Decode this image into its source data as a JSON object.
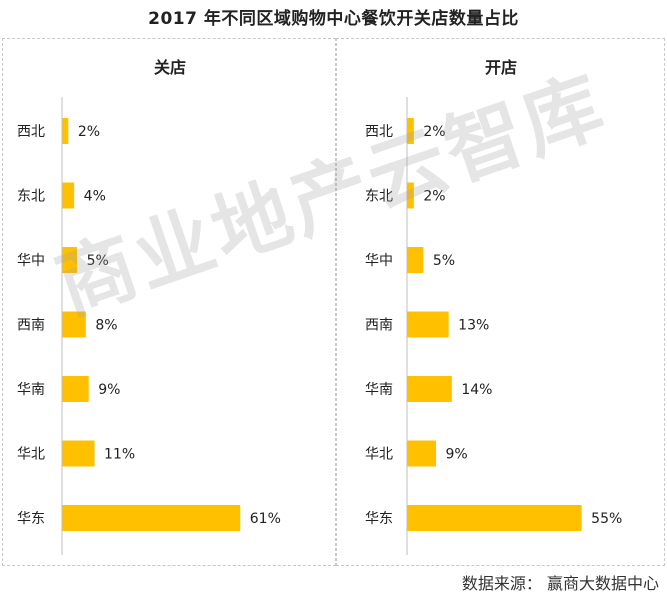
{
  "title": "2017 年不同区域购物中心餐饮开关店数量占比",
  "watermark": "商业地产云智库",
  "source": "数据来源： 赢商大数据中心",
  "bar_color": "#FFC000",
  "chart_data": [
    {
      "type": "bar",
      "orientation": "horizontal",
      "title": "关店",
      "categories": [
        "西北",
        "东北",
        "华中",
        "西南",
        "华南",
        "华北",
        "华东"
      ],
      "values": [
        2,
        4,
        5,
        8,
        9,
        11,
        61
      ],
      "value_labels": [
        "2%",
        "4%",
        "5%",
        "8%",
        "9%",
        "11%",
        "61%"
      ],
      "unit": "%",
      "xlim": [
        0,
        70
      ],
      "grid": false,
      "legend": "none"
    },
    {
      "type": "bar",
      "orientation": "horizontal",
      "title": "开店",
      "categories": [
        "西北",
        "东北",
        "华中",
        "西南",
        "华南",
        "华北",
        "华东"
      ],
      "values": [
        2,
        2,
        5,
        13,
        14,
        9,
        55
      ],
      "value_labels": [
        "2%",
        "2%",
        "5%",
        "13%",
        "14%",
        "9%",
        "55%"
      ],
      "unit": "%",
      "xlim": [
        0,
        60
      ],
      "grid": false,
      "legend": "none"
    }
  ]
}
